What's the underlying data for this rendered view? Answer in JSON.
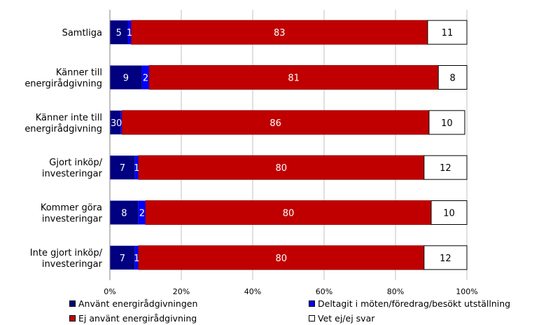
{
  "chart_data": {
    "type": "bar",
    "orientation": "horizontal",
    "stacked": true,
    "categories": [
      [
        "Samtliga"
      ],
      [
        "Känner till",
        "energirådgivning"
      ],
      [
        "Känner inte till",
        "energirådgivning"
      ],
      [
        "Gjort inköp/",
        "investeringar"
      ],
      [
        "Kommer göra",
        "investeringar"
      ],
      [
        "Inte gjort inköp/",
        "investeringar"
      ]
    ],
    "series": [
      {
        "name": "Använt energirådgivningen",
        "color": "#000080",
        "values": [
          5,
          9,
          3,
          7,
          8,
          7
        ],
        "labels": [
          "5",
          "9",
          "3",
          "7",
          "8",
          "7"
        ]
      },
      {
        "name": "Deltagit i möten/föredrag/besökt utställning",
        "color": "#0000ff",
        "values": [
          1,
          2,
          0.4,
          1,
          2,
          1
        ],
        "labels": [
          "1",
          "2",
          "0",
          "1",
          "2",
          "1"
        ]
      },
      {
        "name": "Ej använt energirådgivning",
        "color": "#c00000",
        "values": [
          83,
          81,
          86,
          80,
          80,
          80
        ],
        "labels": [
          "83",
          "81",
          "86",
          "80",
          "80",
          "80"
        ]
      },
      {
        "name": "Vet ej/ej svar",
        "color": "#ffffff",
        "values": [
          11,
          8,
          10,
          12,
          10,
          12
        ],
        "labels": [
          "11",
          "8",
          "10",
          "12",
          "10",
          "12"
        ]
      }
    ],
    "xlim": [
      0,
      100
    ],
    "xticks": [
      "0%",
      "20%",
      "40%",
      "60%",
      "80%",
      "100%"
    ],
    "grid": true,
    "legend_position": "bottom"
  }
}
